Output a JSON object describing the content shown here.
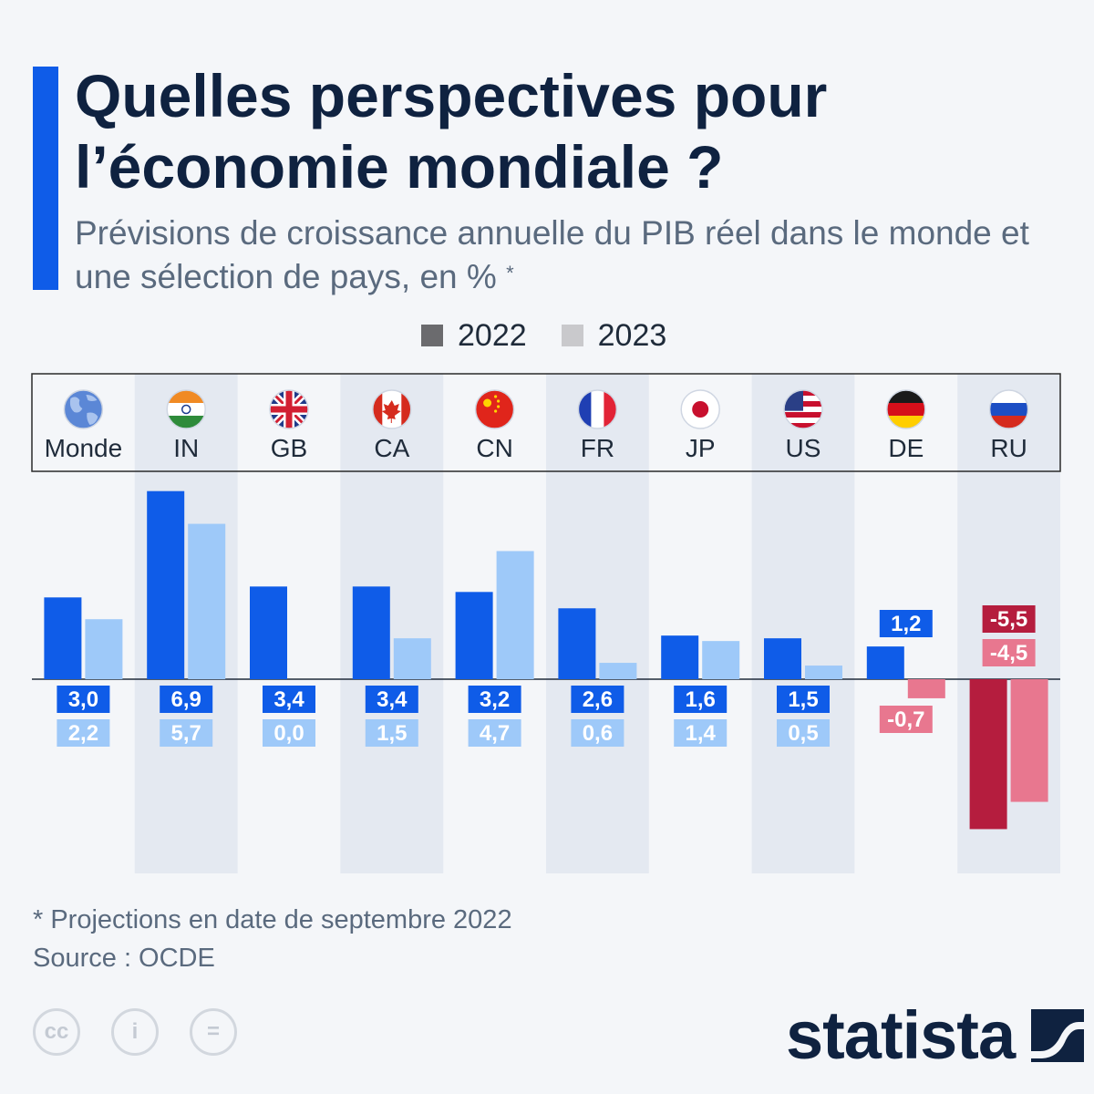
{
  "header": {
    "title": "Quelles perspectives pour l’économie mondiale ?",
    "subtitle": "Prévisions de croissance annuelle du PIB réel dans le monde et une sélection de pays, en %",
    "subtitle_marker": "*"
  },
  "legend": {
    "items": [
      {
        "label": "2022",
        "color": "#6b6b6e"
      },
      {
        "label": "2023",
        "color": "#c9c9cc"
      }
    ]
  },
  "colors": {
    "positive_2022": "#0f5ce8",
    "positive_2023": "#9ec9f9",
    "negative_2022": "#b51d3e",
    "negative_2023": "#e8778f",
    "stripe": "#e4e9f1",
    "header_box_border": "#2a2a2a"
  },
  "chart_data": {
    "type": "bar",
    "categories": [
      "Monde",
      "IN",
      "GB",
      "CA",
      "CN",
      "FR",
      "JP",
      "US",
      "DE",
      "RU"
    ],
    "category_icons": [
      "globe-icon",
      "flag-india-icon",
      "flag-uk-icon",
      "flag-canada-icon",
      "flag-china-icon",
      "flag-france-icon",
      "flag-japan-icon",
      "flag-usa-icon",
      "flag-germany-icon",
      "flag-russia-icon"
    ],
    "series": [
      {
        "name": "2022",
        "values": [
          3.0,
          6.9,
          3.4,
          3.4,
          3.2,
          2.6,
          1.6,
          1.5,
          1.2,
          -5.5
        ],
        "labels": [
          "3,0",
          "6,9",
          "3,4",
          "3,4",
          "3,2",
          "2,6",
          "1,6",
          "1,5",
          "1,2",
          "-5,5"
        ]
      },
      {
        "name": "2023",
        "values": [
          2.2,
          5.7,
          0.0,
          1.5,
          4.7,
          0.6,
          1.4,
          0.5,
          -0.7,
          -4.5
        ],
        "labels": [
          "2,2",
          "5,7",
          "0,0",
          "1,5",
          "4,7",
          "0,6",
          "1,4",
          "0,5",
          "-0,7",
          "-4,5"
        ]
      }
    ],
    "unit": "%",
    "ylim": [
      -5.5,
      6.9
    ],
    "grid": false,
    "legend_position": "top"
  },
  "footnote": {
    "note": "* Projections en date de septembre 2022",
    "source": "Source : OCDE"
  },
  "license_icons": [
    "cc-icon",
    "attribution-icon",
    "no-derivatives-icon"
  ],
  "license_labels": [
    "cc",
    "i",
    "="
  ],
  "brand": {
    "name": "statista"
  }
}
